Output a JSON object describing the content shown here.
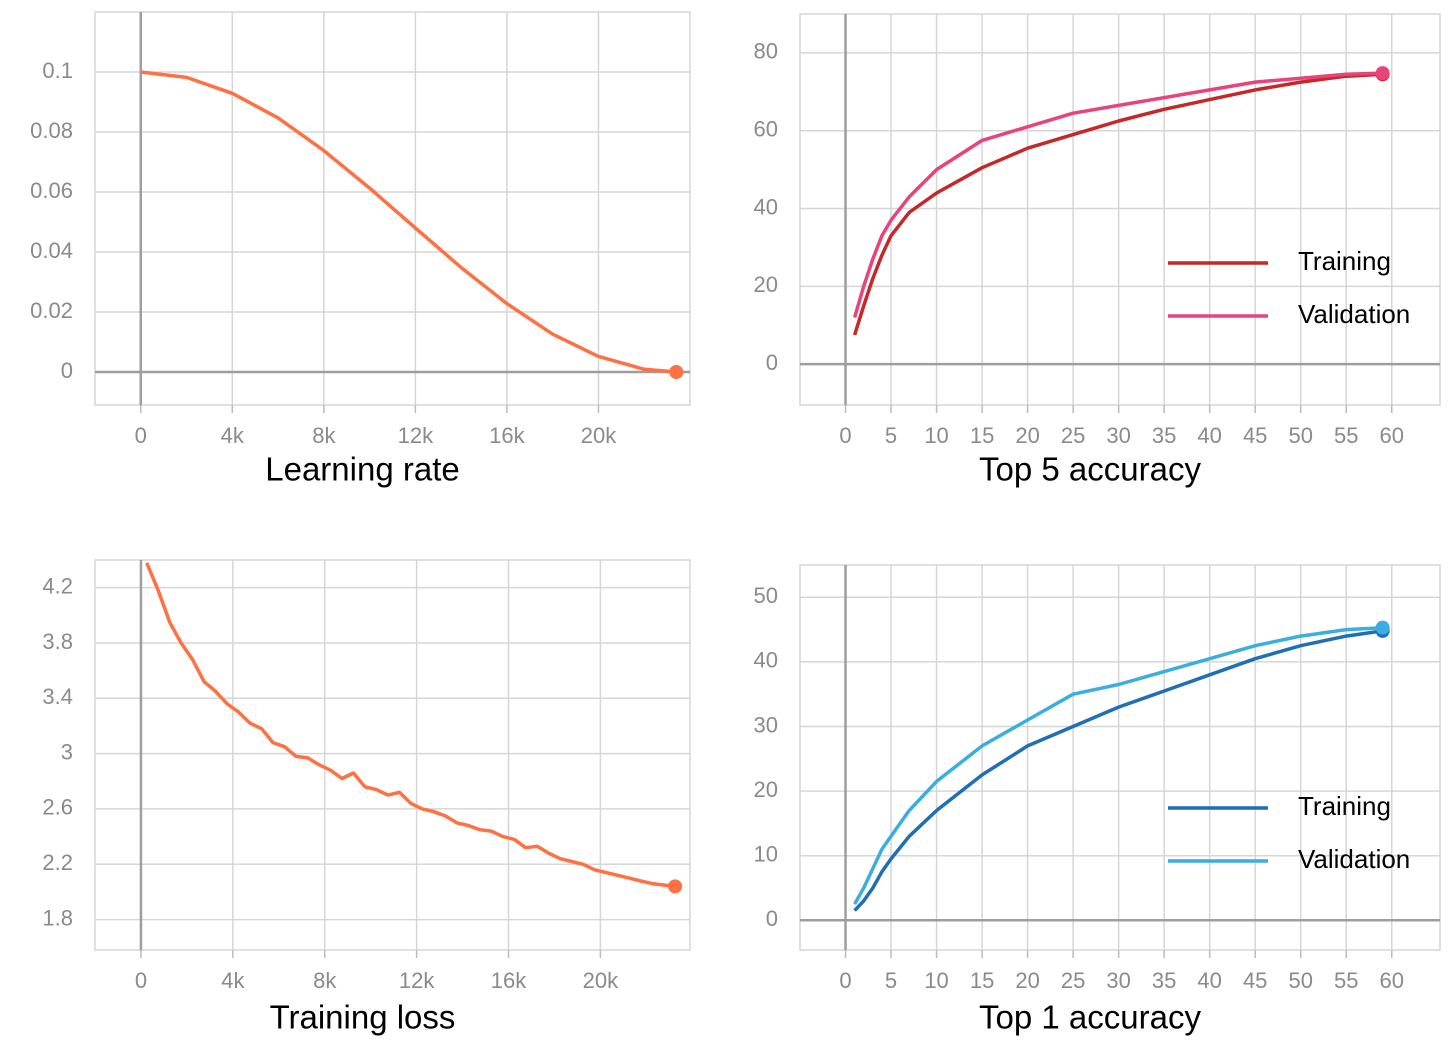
{
  "chart_data": [
    {
      "type": "line",
      "title": "Learning rate",
      "grid": true,
      "x": [
        0,
        2000,
        4000,
        6000,
        8000,
        10000,
        12000,
        14000,
        16000,
        18000,
        20000,
        22000,
        23400
      ],
      "series": [
        {
          "color": "#ff7043",
          "values": [
            0.1,
            0.0982,
            0.0929,
            0.0847,
            0.0738,
            0.0613,
            0.048,
            0.0348,
            0.0228,
            0.0126,
            0.0052,
            0.0009,
            0
          ]
        }
      ],
      "xlim": [
        -2000,
        24000
      ],
      "ylim": [
        -0.011,
        0.12
      ],
      "xticks": [
        0,
        {
          "value": 4000,
          "label": "4k"
        },
        {
          "value": 8000,
          "label": "8k"
        },
        {
          "value": 12000,
          "label": "12k"
        },
        {
          "value": 16000,
          "label": "16k"
        },
        {
          "value": 20000,
          "label": "20k"
        }
      ],
      "yticks": [
        0,
        0.02,
        0.04,
        0.06,
        0.08,
        0.1
      ]
    },
    {
      "type": "line",
      "title": "Top 5 accuracy",
      "grid": true,
      "legend": "lower right",
      "x": [
        1,
        2,
        3,
        4,
        5,
        7,
        10,
        15,
        20,
        25,
        30,
        35,
        40,
        45,
        50,
        55,
        59
      ],
      "series": [
        {
          "name": "Training",
          "color": "#c62828",
          "values": [
            7.5,
            15,
            22,
            28,
            33,
            39,
            44,
            50.5,
            55.5,
            59,
            62.5,
            65.5,
            68,
            70.5,
            72.5,
            74,
            74.5
          ]
        },
        {
          "name": "Validation",
          "color": "#e8437a",
          "values": [
            12,
            20,
            27,
            33,
            37,
            43,
            50,
            57.5,
            61,
            64.5,
            66.5,
            68.5,
            70.5,
            72.5,
            73.5,
            74.5,
            74.8
          ]
        }
      ],
      "xlim": [
        -5,
        65.3
      ],
      "ylim": [
        -10.5,
        90
      ],
      "xticks": [
        0,
        5,
        10,
        15,
        20,
        25,
        30,
        35,
        40,
        45,
        50,
        55,
        60
      ],
      "yticks": [
        0,
        20,
        40,
        60,
        80
      ]
    },
    {
      "type": "line",
      "title": "Training loss",
      "grid": true,
      "x": [
        250,
        750,
        1250,
        1750,
        2250,
        2750,
        3250,
        3750,
        4250,
        4750,
        5250,
        5750,
        6250,
        6750,
        7250,
        7750,
        8250,
        8750,
        9250,
        9750,
        10250,
        10750,
        11250,
        11750,
        12250,
        12750,
        13250,
        13750,
        14250,
        14750,
        15250,
        15750,
        16250,
        16750,
        17250,
        17750,
        18250,
        18750,
        19250,
        19750,
        20250,
        20750,
        21250,
        21750,
        22250,
        22750,
        23250
      ],
      "series": [
        {
          "color": "#ff7043",
          "values": [
            4.38,
            4.18,
            3.95,
            3.8,
            3.68,
            3.52,
            3.45,
            3.36,
            3.3,
            3.22,
            3.18,
            3.08,
            3.05,
            2.98,
            2.97,
            2.92,
            2.88,
            2.82,
            2.86,
            2.76,
            2.74,
            2.7,
            2.72,
            2.64,
            2.6,
            2.58,
            2.55,
            2.5,
            2.48,
            2.45,
            2.44,
            2.4,
            2.38,
            2.32,
            2.33,
            2.28,
            2.24,
            2.22,
            2.2,
            2.16,
            2.14,
            2.12,
            2.1,
            2.08,
            2.06,
            2.05,
            2.04
          ]
        }
      ],
      "xlim": [
        -2000,
        23900
      ],
      "ylim": [
        1.58,
        4.4
      ],
      "xticks": [
        0,
        {
          "value": 4000,
          "label": "4k"
        },
        {
          "value": 8000,
          "label": "8k"
        },
        {
          "value": 12000,
          "label": "12k"
        },
        {
          "value": 16000,
          "label": "16k"
        },
        {
          "value": 20000,
          "label": "20k"
        }
      ],
      "yticks": [
        1.8,
        2.2,
        2.6,
        3,
        3.4,
        3.8,
        4.2
      ]
    },
    {
      "type": "line",
      "title": "Top 1 accuracy",
      "grid": true,
      "legend": "lower right",
      "x": [
        1,
        2,
        3,
        4,
        5,
        7,
        10,
        15,
        20,
        25,
        30,
        35,
        40,
        45,
        50,
        55,
        59
      ],
      "series": [
        {
          "name": "Training",
          "color": "#1f6fb5",
          "values": [
            1.5,
            3,
            5,
            7.5,
            9.5,
            13,
            17,
            22.5,
            27,
            30,
            33,
            35.5,
            38,
            40.5,
            42.5,
            44,
            44.8
          ]
        },
        {
          "name": "Validation",
          "color": "#3aaee0",
          "values": [
            2.5,
            5,
            8,
            11,
            13,
            17,
            21.5,
            27,
            31,
            35,
            36.5,
            38.5,
            40.5,
            42.5,
            44,
            45,
            45.3
          ]
        }
      ],
      "xlim": [
        -5,
        65.3
      ],
      "ylim": [
        -4.6,
        55
      ],
      "xticks": [
        0,
        5,
        10,
        15,
        20,
        25,
        30,
        35,
        40,
        45,
        50,
        55,
        60
      ],
      "yticks": [
        0,
        10,
        20,
        30,
        40,
        50
      ]
    }
  ]
}
